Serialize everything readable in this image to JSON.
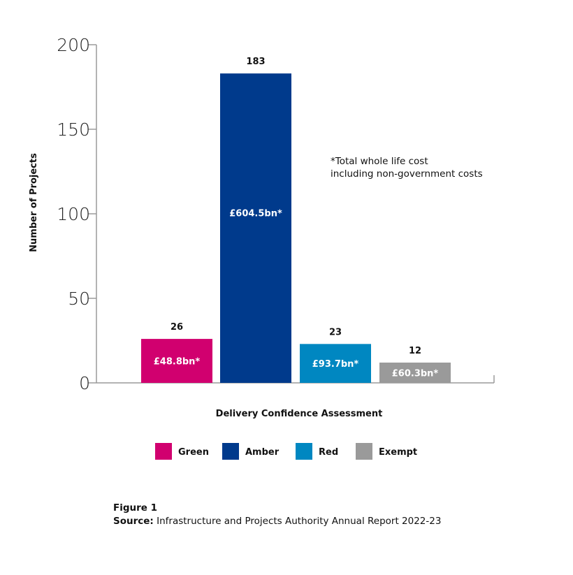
{
  "chart_data": {
    "type": "bar",
    "categories": [
      "Green",
      "Amber",
      "Red",
      "Exempt"
    ],
    "values": [
      26,
      183,
      23,
      12
    ],
    "bar_labels": [
      "£48.8bn*",
      "£604.5bn*",
      "£93.7bn*",
      "£60.3bn*"
    ],
    "colors": [
      "#D1006F",
      "#003A8C",
      "#0087C1",
      "#9A9A9A"
    ],
    "xlabel": "Delivery Confidence Assessment",
    "ylabel": "Number of Projects",
    "ylim": [
      0,
      200
    ],
    "yticks": [
      0,
      50,
      100,
      150,
      200
    ],
    "legend": [
      "Green",
      "Amber",
      "Red",
      "Exempt"
    ],
    "legend_position": "bottom",
    "grid": false,
    "annotation": [
      "*Total whole life cost",
      "including non-government costs"
    ]
  },
  "caption": {
    "figure": "Figure 1",
    "source_label": "Source:",
    "source_text": " Infrastructure and Projects Authority Annual Report 2022-23"
  }
}
